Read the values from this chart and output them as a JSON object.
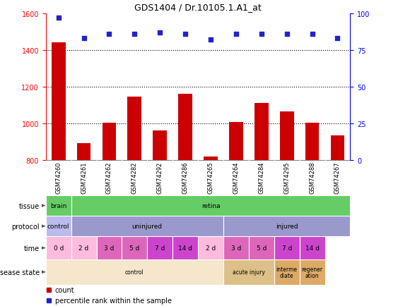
{
  "title": "GDS1404 / Dr.10105.1.A1_at",
  "samples": [
    "GSM74260",
    "GSM74261",
    "GSM74262",
    "GSM74282",
    "GSM74292",
    "GSM74286",
    "GSM74265",
    "GSM74264",
    "GSM74284",
    "GSM74295",
    "GSM74288",
    "GSM74267"
  ],
  "counts": [
    1440,
    893,
    1005,
    1145,
    960,
    1160,
    820,
    1007,
    1110,
    1063,
    1005,
    933
  ],
  "percentiles": [
    97,
    83,
    86,
    86,
    87,
    86,
    82,
    86,
    86,
    86,
    86,
    83
  ],
  "ylim_left": [
    800,
    1600
  ],
  "ylim_right": [
    0,
    100
  ],
  "yticks_left": [
    800,
    1000,
    1200,
    1400,
    1600
  ],
  "yticks_right": [
    0,
    25,
    50,
    75,
    100
  ],
  "bar_color": "#cc0000",
  "dot_color": "#2222cc",
  "grid_values": [
    1000,
    1200,
    1400
  ],
  "tissue_segments": [
    {
      "text": "brain",
      "start": 0,
      "end": 1,
      "color": "#66cc66"
    },
    {
      "text": "retina",
      "start": 1,
      "end": 12,
      "color": "#66cc66"
    }
  ],
  "protocol_segments": [
    {
      "text": "control",
      "start": 0,
      "end": 1,
      "color": "#bbbbee"
    },
    {
      "text": "uninjured",
      "start": 1,
      "end": 7,
      "color": "#9999cc"
    },
    {
      "text": "injured",
      "start": 7,
      "end": 12,
      "color": "#9999cc"
    }
  ],
  "time_segments": [
    {
      "text": "0 d",
      "start": 0,
      "end": 1,
      "color": "#ffbbdd"
    },
    {
      "text": "2 d",
      "start": 1,
      "end": 2,
      "color": "#ffbbdd"
    },
    {
      "text": "3 d",
      "start": 2,
      "end": 3,
      "color": "#dd66bb"
    },
    {
      "text": "5 d",
      "start": 3,
      "end": 4,
      "color": "#dd66bb"
    },
    {
      "text": "7 d",
      "start": 4,
      "end": 5,
      "color": "#cc44cc"
    },
    {
      "text": "14 d",
      "start": 5,
      "end": 6,
      "color": "#cc44cc"
    },
    {
      "text": "2 d",
      "start": 6,
      "end": 7,
      "color": "#ffbbdd"
    },
    {
      "text": "3 d",
      "start": 7,
      "end": 8,
      "color": "#dd66bb"
    },
    {
      "text": "5 d",
      "start": 8,
      "end": 9,
      "color": "#dd66bb"
    },
    {
      "text": "7 d",
      "start": 9,
      "end": 10,
      "color": "#cc44cc"
    },
    {
      "text": "14 d",
      "start": 10,
      "end": 11,
      "color": "#cc44cc"
    }
  ],
  "disease_segments": [
    {
      "text": "control",
      "start": 0,
      "end": 7,
      "color": "#f5e6cc"
    },
    {
      "text": "acute injury",
      "start": 7,
      "end": 9,
      "color": "#ddbf88"
    },
    {
      "text": "interme\ndiate",
      "start": 9,
      "end": 10,
      "color": "#ddaa66"
    },
    {
      "text": "regener\nation",
      "start": 10,
      "end": 11,
      "color": "#ddaa66"
    }
  ],
  "row_labels": [
    "tissue",
    "protocol",
    "time",
    "disease state"
  ],
  "bg_color": "#ffffff",
  "spine_gray": "#aaaaaa"
}
